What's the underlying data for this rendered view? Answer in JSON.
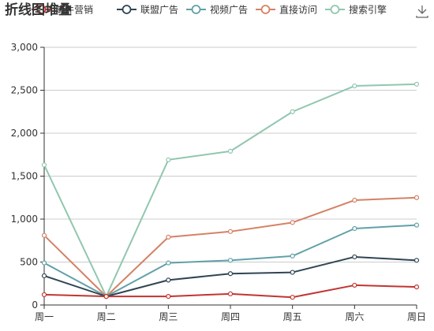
{
  "chart_data": {
    "type": "line",
    "title": "折线图堆叠",
    "xlabel": "",
    "ylabel": "",
    "categories": [
      "周一",
      "周二",
      "周三",
      "周四",
      "周五",
      "周六",
      "周日"
    ],
    "ylim": [
      0,
      3000
    ],
    "yticks": [
      0,
      500,
      1000,
      1500,
      2000,
      2500,
      3000
    ],
    "ytick_labels": [
      "0",
      "500",
      "1,000",
      "1,500",
      "2,000",
      "2,500",
      "3,000"
    ],
    "grid": true,
    "legend_position": "top",
    "stacked": true,
    "series": [
      {
        "name": "邮件营销",
        "color": "#c23531",
        "values": [
          120,
          100,
          100,
          130,
          90,
          230,
          210
        ]
      },
      {
        "name": "联盟广告",
        "color": "#2f4554",
        "values": [
          340,
          100,
          290,
          365,
          380,
          560,
          520
        ]
      },
      {
        "name": "视频广告",
        "color": "#61a0a8",
        "values": [
          490,
          100,
          490,
          520,
          570,
          890,
          930
        ]
      },
      {
        "name": "直接访问",
        "color": "#d48265",
        "values": [
          810,
          100,
          790,
          855,
          960,
          1220,
          1250
        ]
      },
      {
        "name": "搜索引擎",
        "color": "#91c7ae",
        "values": [
          1630,
          100,
          1690,
          1790,
          2250,
          2550,
          2570
        ]
      }
    ]
  },
  "toolbox": {
    "icon": "download-icon"
  }
}
